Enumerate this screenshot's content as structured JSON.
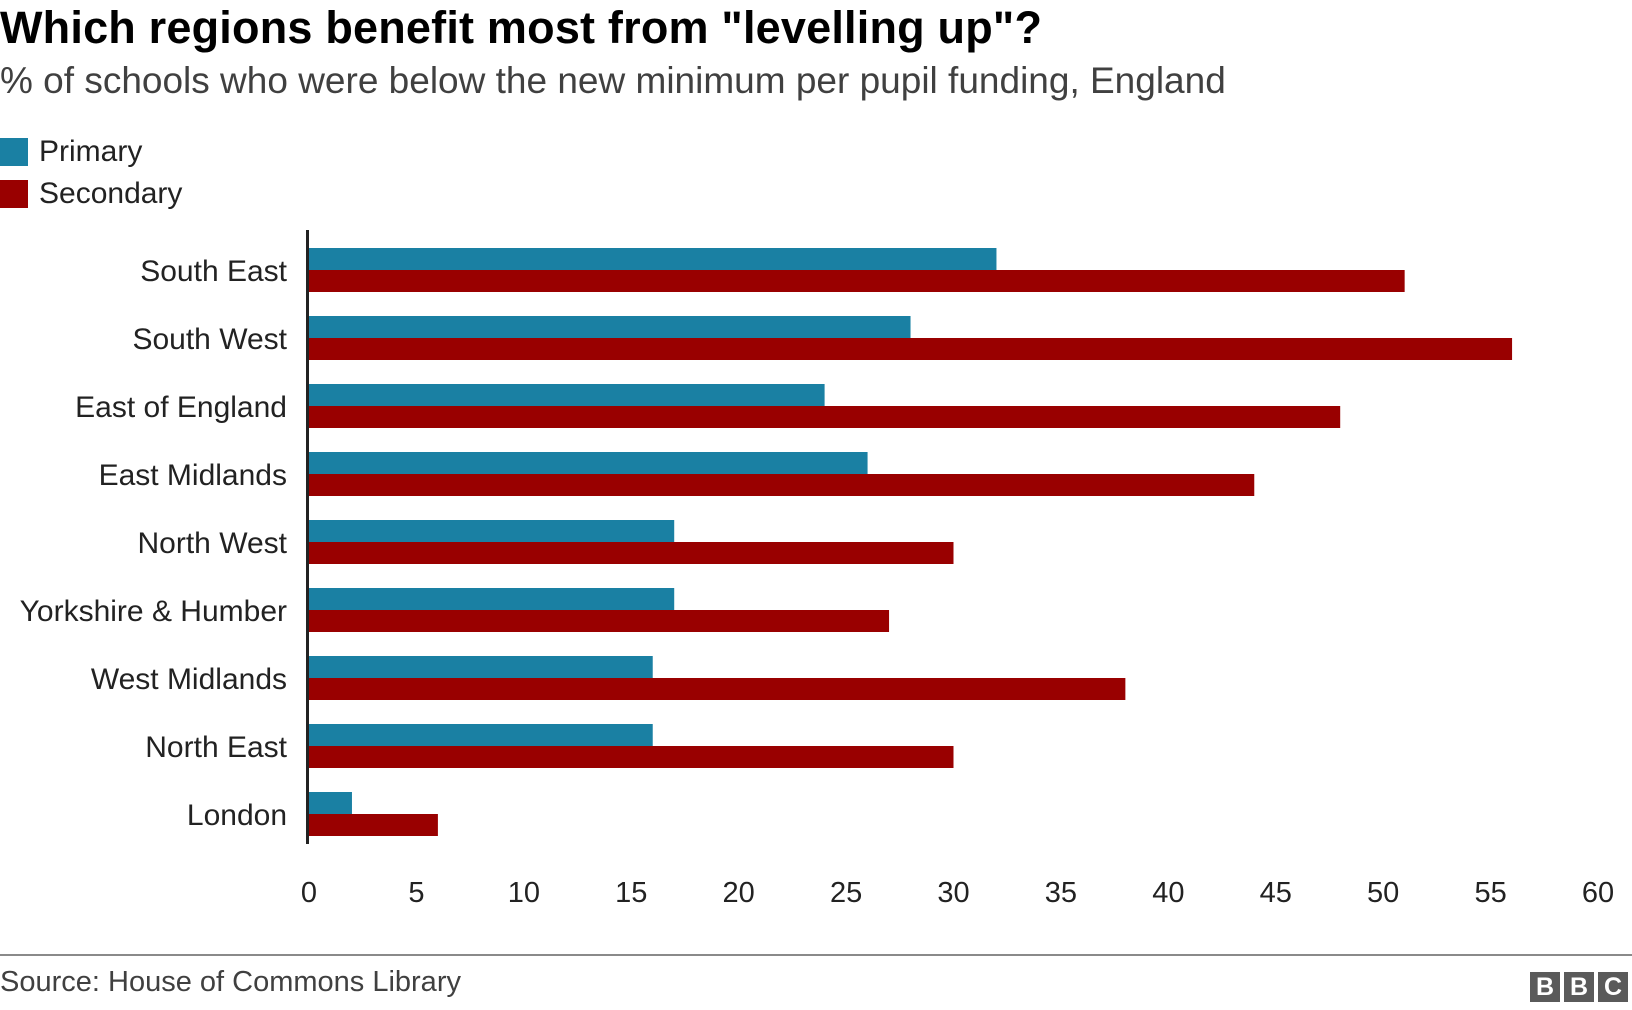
{
  "title": "Which regions benefit most from \"levelling up\"?",
  "subtitle": "% of schools who were below the new minimum per pupil funding, England",
  "legend": [
    {
      "label": "Primary",
      "color": "#1a80a3"
    },
    {
      "label": "Secondary",
      "color": "#990000"
    }
  ],
  "source": "Source: House of Commons Library",
  "logo": [
    "B",
    "B",
    "C"
  ],
  "chart_data": {
    "type": "bar",
    "orientation": "horizontal",
    "title": "Which regions benefit most from \"levelling up\"?",
    "subtitle": "% of schools who were below the new minimum per pupil funding, England",
    "categories": [
      "South East",
      "South West",
      "East of England",
      "East Midlands",
      "North West",
      "Yorkshire & Humber",
      "West Midlands",
      "North East",
      "London"
    ],
    "series": [
      {
        "name": "Primary",
        "color": "#1a80a3",
        "values": [
          32,
          28,
          24,
          26,
          17,
          17,
          16,
          16,
          2
        ]
      },
      {
        "name": "Secondary",
        "color": "#990000",
        "values": [
          51,
          56,
          48,
          44,
          30,
          27,
          38,
          30,
          6
        ]
      }
    ],
    "xlim": [
      0,
      60
    ],
    "xticks": [
      0,
      5,
      10,
      15,
      20,
      25,
      30,
      35,
      40,
      45,
      50,
      55,
      60
    ],
    "xlabel": "",
    "ylabel": "",
    "grid": false,
    "legend_position": "top-left"
  }
}
